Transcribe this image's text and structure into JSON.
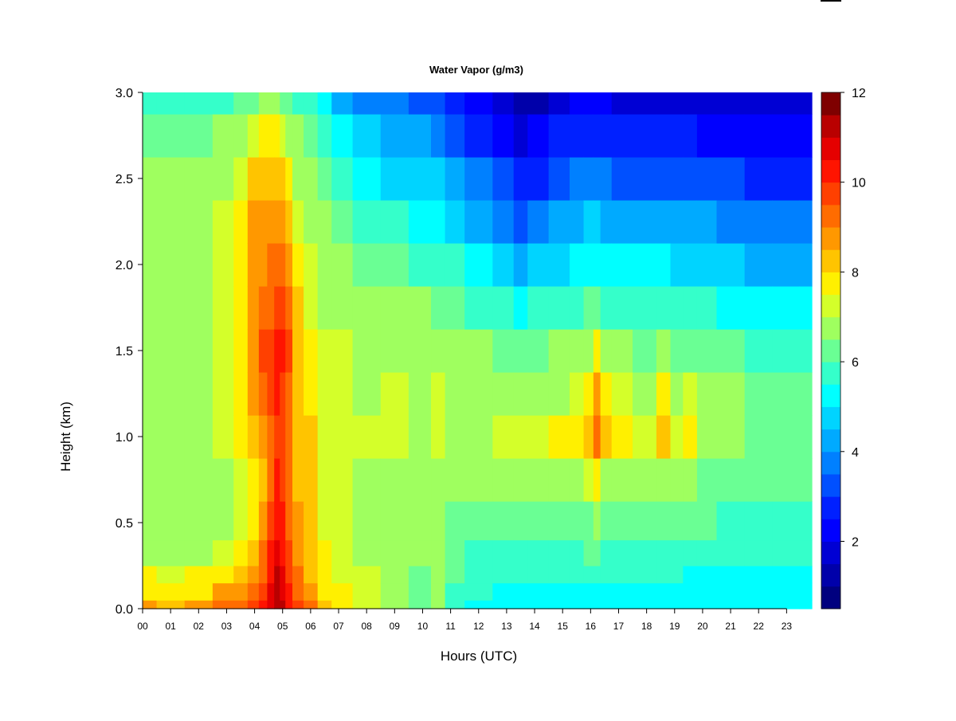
{
  "chart_data": {
    "type": "heatmap",
    "title": "Water Vapor (g/m3)",
    "xlabel": "Hours (UTC)",
    "ylabel": "Height (km)",
    "x_ticks": [
      "00",
      "01",
      "02",
      "03",
      "04",
      "05",
      "06",
      "07",
      "08",
      "09",
      "10",
      "11",
      "12",
      "13",
      "14",
      "15",
      "16",
      "17",
      "18",
      "19",
      "20",
      "21",
      "22",
      "23"
    ],
    "x_range": [
      0,
      23.9
    ],
    "y_ticks": [
      "0.0",
      "0.5",
      "1.0",
      "1.5",
      "2.0",
      "2.5",
      "3.0"
    ],
    "y_range": [
      0,
      3.0
    ],
    "colorbar": {
      "ticks": [
        "2",
        "4",
        "6",
        "8",
        "10",
        "12"
      ],
      "range": [
        0.5,
        12
      ],
      "colors": [
        "#00007F",
        "#0000AA",
        "#0000D4",
        "#0000FF",
        "#0020FF",
        "#0050FF",
        "#0080FF",
        "#00AAFF",
        "#00D4FF",
        "#00FFFF",
        "#35FFCA",
        "#6AFF94",
        "#9FFF5F",
        "#D4FF2A",
        "#FFF000",
        "#FFC400",
        "#FF9800",
        "#FF6C00",
        "#FF4000",
        "#FF1400",
        "#E50000",
        "#B90000",
        "#7F0000"
      ],
      "position": "right"
    },
    "z_units": "g/m3",
    "x_hours": [
      0,
      1,
      2,
      3,
      3.5,
      4,
      4.3,
      4.6,
      4.8,
      5.0,
      5.2,
      5.5,
      6,
      6.5,
      7,
      8,
      9,
      10,
      10.6,
      11,
      12,
      13,
      13.5,
      14,
      15,
      15.5,
      16,
      16.2,
      16.5,
      17,
      18,
      18.7,
      19,
      19.6,
      20,
      21,
      22,
      23,
      23.9
    ],
    "y_km": [
      0,
      0.1,
      0.2,
      0.3,
      0.5,
      0.75,
      1.0,
      1.25,
      1.5,
      1.75,
      2.0,
      2.25,
      2.5,
      2.75,
      3.0
    ],
    "z": [
      [
        8.5,
        7.8,
        7.5,
        6.9,
        6.8,
        6.8,
        6.8,
        6.8,
        6.9,
        6.8,
        6.9,
        6.7,
        6.5,
        6.2,
        5.8
      ],
      [
        8.4,
        7.7,
        7.4,
        6.9,
        6.8,
        6.8,
        6.8,
        6.8,
        6.9,
        6.8,
        6.9,
        6.7,
        6.5,
        6.2,
        5.8
      ],
      [
        8.6,
        7.9,
        7.6,
        7.0,
        6.8,
        6.8,
        6.9,
        6.9,
        6.9,
        6.9,
        6.9,
        6.8,
        6.6,
        6.3,
        5.8
      ],
      [
        9.0,
        8.5,
        7.8,
        7.3,
        7.0,
        7.0,
        7.1,
        7.2,
        7.2,
        7.2,
        7.2,
        7.1,
        6.9,
        6.5,
        5.8
      ],
      [
        9.4,
        8.8,
        8.1,
        7.6,
        7.3,
        7.3,
        7.5,
        7.7,
        7.8,
        7.8,
        7.8,
        7.7,
        7.3,
        6.8,
        6.0
      ],
      [
        9.8,
        9.3,
        8.8,
        8.2,
        7.8,
        7.8,
        8.0,
        8.5,
        8.8,
        8.5,
        8.5,
        8.6,
        8.0,
        7.3,
        6.3
      ],
      [
        10.2,
        9.8,
        9.4,
        9.0,
        8.5,
        8.3,
        8.5,
        9.2,
        9.5,
        9.0,
        8.9,
        8.9,
        8.4,
        7.6,
        6.5
      ],
      [
        10.8,
        10.6,
        10.4,
        10.0,
        9.6,
        9.2,
        9.0,
        9.6,
        9.8,
        9.4,
        9.0,
        8.8,
        8.4,
        7.6,
        6.6
      ],
      [
        11.3,
        11.2,
        11.0,
        10.7,
        10.3,
        10.0,
        9.6,
        10.0,
        10.4,
        9.8,
        9.2,
        8.7,
        8.3,
        7.5,
        6.5
      ],
      [
        11.0,
        10.8,
        10.5,
        10.2,
        10.0,
        9.8,
        9.5,
        9.8,
        10.2,
        9.6,
        9.0,
        8.5,
        8.0,
        7.3,
        6.4
      ],
      [
        10.3,
        10.1,
        9.8,
        9.5,
        9.3,
        9.2,
        9.0,
        9.2,
        9.6,
        9.2,
        8.6,
        8.0,
        7.6,
        7.0,
        6.2
      ],
      [
        9.6,
        9.3,
        9.0,
        8.6,
        8.5,
        8.4,
        8.2,
        8.2,
        8.4,
        8.2,
        7.8,
        7.4,
        7.0,
        6.5,
        5.9
      ],
      [
        9.0,
        8.7,
        8.4,
        8.0,
        8.1,
        8.2,
        8.0,
        7.8,
        7.6,
        7.4,
        7.2,
        6.9,
        6.6,
        6.2,
        5.6
      ],
      [
        8.0,
        7.8,
        7.7,
        7.5,
        7.4,
        7.4,
        7.4,
        7.3,
        7.2,
        7.0,
        6.8,
        6.5,
        6.2,
        5.7,
        5.0
      ],
      [
        7.7,
        7.5,
        7.4,
        7.3,
        7.3,
        7.3,
        7.3,
        7.2,
        7.1,
        6.9,
        6.6,
        6.2,
        5.7,
        5.1,
        4.4
      ],
      [
        7.4,
        7.2,
        7.1,
        7.0,
        6.9,
        7.0,
        7.1,
        7.0,
        6.9,
        6.7,
        6.3,
        5.9,
        5.3,
        4.7,
        3.9
      ],
      [
        7.0,
        6.8,
        6.8,
        6.8,
        6.9,
        7.0,
        7.3,
        7.1,
        7.0,
        6.6,
        6.1,
        5.5,
        4.9,
        4.2,
        3.5
      ],
      [
        6.4,
        6.3,
        6.4,
        6.5,
        6.6,
        6.8,
        7.0,
        7.0,
        6.9,
        6.5,
        5.9,
        5.3,
        4.7,
        4.0,
        3.2
      ],
      [
        6.6,
        6.5,
        6.5,
        6.6,
        6.7,
        6.9,
        7.1,
        7.2,
        7.0,
        6.4,
        5.8,
        5.1,
        4.5,
        3.8,
        3.1
      ],
      [
        5.8,
        5.9,
        6.0,
        6.2,
        6.4,
        6.7,
        7.0,
        6.9,
        6.8,
        6.2,
        5.5,
        4.8,
        4.1,
        3.4,
        2.7
      ],
      [
        5.4,
        5.5,
        5.7,
        5.9,
        6.2,
        6.6,
        6.9,
        6.8,
        6.5,
        5.9,
        5.1,
        4.3,
        3.5,
        2.9,
        2.3
      ],
      [
        5.3,
        5.4,
        5.6,
        5.8,
        6.1,
        6.6,
        7.2,
        6.8,
        6.4,
        5.6,
        4.7,
        3.8,
        3.0,
        2.3,
        1.7
      ],
      [
        5.3,
        5.4,
        5.6,
        5.8,
        6.1,
        6.7,
        7.3,
        6.9,
        6.3,
        5.4,
        4.4,
        3.4,
        2.6,
        1.8,
        1.2
      ],
      [
        5.3,
        5.4,
        5.6,
        5.8,
        6.1,
        6.6,
        7.2,
        6.8,
        6.4,
        5.6,
        4.6,
        3.6,
        2.8,
        2.0,
        1.4
      ],
      [
        5.2,
        5.3,
        5.5,
        5.8,
        6.2,
        6.8,
        7.6,
        7.0,
        6.5,
        5.8,
        4.9,
        4.0,
        3.2,
        2.5,
        1.9
      ],
      [
        5.2,
        5.4,
        5.6,
        5.9,
        6.3,
        6.9,
        7.9,
        7.2,
        6.6,
        5.9,
        5.1,
        4.3,
        3.5,
        2.7,
        2.0
      ],
      [
        5.2,
        5.4,
        5.7,
        6.0,
        6.4,
        7.2,
        8.3,
        7.9,
        7.0,
        6.1,
        5.3,
        4.5,
        3.6,
        2.8,
        2.0
      ],
      [
        5.2,
        5.4,
        5.7,
        6.0,
        6.5,
        7.6,
        9.2,
        8.8,
        7.8,
        6.3,
        5.4,
        4.6,
        3.7,
        2.8,
        2.0
      ],
      [
        5.2,
        5.4,
        5.6,
        5.9,
        6.3,
        7.0,
        8.2,
        7.6,
        6.8,
        5.9,
        5.1,
        4.3,
        3.5,
        2.7,
        2.0
      ],
      [
        5.1,
        5.3,
        5.5,
        5.8,
        6.1,
        6.8,
        7.8,
        7.3,
        6.6,
        5.9,
        5.0,
        4.2,
        3.4,
        2.6,
        1.9
      ],
      [
        5.1,
        5.2,
        5.5,
        5.7,
        6.0,
        6.6,
        7.1,
        7.0,
        6.4,
        5.8,
        5.0,
        4.2,
        3.4,
        2.6,
        1.9
      ],
      [
        5.1,
        5.2,
        5.5,
        5.7,
        6.0,
        6.6,
        8.3,
        7.6,
        6.6,
        5.8,
        5.0,
        4.2,
        3.4,
        2.6,
        1.9
      ],
      [
        5.1,
        5.2,
        5.5,
        5.7,
        6.0,
        6.5,
        7.2,
        7.0,
        6.4,
        5.7,
        4.9,
        4.1,
        3.3,
        2.5,
        1.9
      ],
      [
        5.1,
        5.2,
        5.4,
        5.7,
        6.0,
        6.5,
        7.6,
        7.1,
        6.4,
        5.7,
        4.9,
        4.1,
        3.3,
        2.5,
        1.9
      ],
      [
        5.1,
        5.2,
        5.4,
        5.7,
        6.0,
        6.4,
        6.8,
        6.7,
        6.2,
        5.6,
        4.8,
        4.0,
        3.2,
        2.4,
        1.8
      ],
      [
        5.0,
        5.1,
        5.3,
        5.6,
        5.9,
        6.3,
        6.6,
        6.5,
        6.0,
        5.4,
        4.6,
        3.8,
        3.0,
        2.3,
        1.7
      ],
      [
        5.0,
        5.1,
        5.3,
        5.5,
        5.8,
        6.1,
        6.3,
        6.2,
        5.8,
        5.2,
        4.4,
        3.6,
        2.9,
        2.2,
        1.6
      ],
      [
        5.0,
        5.1,
        5.3,
        5.5,
        5.7,
        6.0,
        6.2,
        6.0,
        5.6,
        5.0,
        4.2,
        3.5,
        2.8,
        2.2,
        1.7
      ],
      [
        5.0,
        5.1,
        5.3,
        5.5,
        5.7,
        6.0,
        6.2,
        6.0,
        5.6,
        5.0,
        4.2,
        3.5,
        2.8,
        2.3,
        1.8
      ]
    ]
  }
}
